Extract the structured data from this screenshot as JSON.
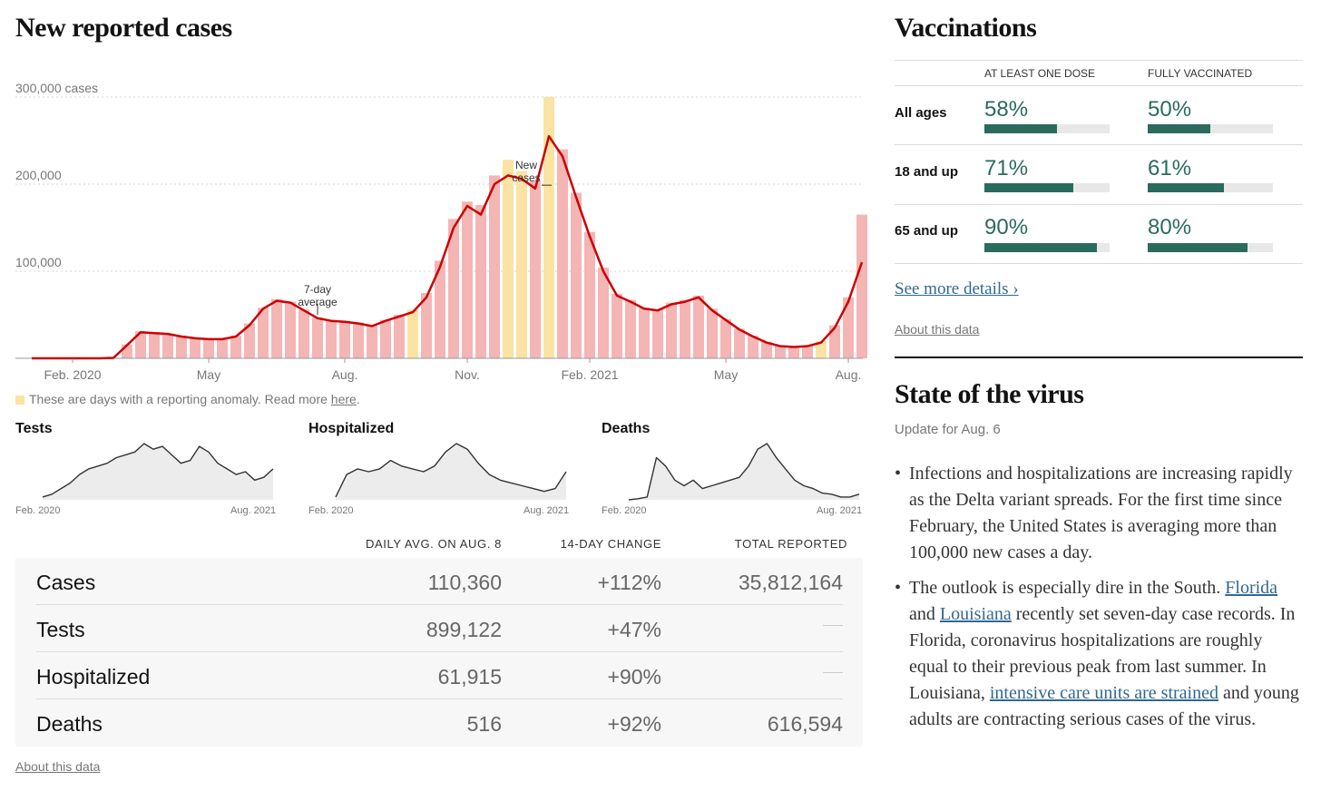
{
  "main": {
    "title": "New reported cases",
    "anomaly_note": "These are days with a reporting anomaly. Read more ",
    "anomaly_link": "here",
    "anomaly_end": ".",
    "about_link": "About this data"
  },
  "chart_data": {
    "type": "bar",
    "title": "New reported cases",
    "y_tick_labels": [
      "300,000 cases",
      "200,000",
      "100,000"
    ],
    "y_ticks": [
      300000,
      200000,
      100000
    ],
    "ylim": [
      0,
      300000
    ],
    "x_tick_labels": [
      "Feb. 2020",
      "May",
      "Aug.",
      "Nov.",
      "Feb. 2021",
      "May",
      "Aug."
    ],
    "x_tick_index": [
      3,
      13,
      23,
      32,
      41,
      51,
      60
    ],
    "grid": true,
    "annotations": [
      {
        "text": [
          "7-day",
          "average"
        ],
        "index": 21
      },
      {
        "text": [
          "New",
          "cases"
        ],
        "index": 37
      }
    ],
    "x_range": [
      "Jan. 2020",
      "Aug. 8, 2021"
    ],
    "series": [
      {
        "name": "7-day average",
        "color": "#cc0000",
        "values": [
          0,
          0,
          0,
          0,
          0,
          0,
          500,
          15000,
          30000,
          29000,
          28000,
          25000,
          23000,
          22000,
          22000,
          25000,
          38000,
          57000,
          66000,
          64000,
          55000,
          46000,
          43000,
          42000,
          40000,
          37000,
          43000,
          48000,
          53000,
          70000,
          105000,
          150000,
          175000,
          165000,
          200000,
          210000,
          206000,
          195000,
          255000,
          232000,
          185000,
          140000,
          100000,
          72000,
          65000,
          57000,
          55000,
          62000,
          65000,
          70000,
          55000,
          44000,
          33000,
          25000,
          18000,
          14000,
          13000,
          14000,
          18000,
          35000,
          65000,
          110360
        ]
      },
      {
        "name": "New cases",
        "color": "#f4b5b5",
        "values": [
          0,
          0,
          0,
          0,
          0,
          0,
          800,
          16000,
          31000,
          30000,
          28000,
          26000,
          24000,
          23000,
          23000,
          26000,
          40000,
          58000,
          68000,
          65000,
          56000,
          47000,
          44000,
          43000,
          41000,
          38000,
          44000,
          50000,
          56000,
          75000,
          112000,
          160000,
          180000,
          176000,
          210000,
          228000,
          215000,
          204000,
          300000,
          240000,
          190000,
          145000,
          104000,
          74000,
          67000,
          58000,
          56000,
          64000,
          67000,
          72000,
          57000,
          45000,
          34000,
          26000,
          19000,
          15000,
          14000,
          15000,
          20000,
          38000,
          70000,
          165000
        ]
      }
    ],
    "anomaly_index": [
      28,
      35,
      36,
      38,
      58
    ]
  },
  "sparklines": [
    {
      "title": "Tests",
      "start": "Feb. 2020",
      "end": "Aug. 2021",
      "values": [
        0.05,
        0.1,
        0.2,
        0.3,
        0.45,
        0.55,
        0.6,
        0.65,
        0.75,
        0.8,
        0.85,
        1.0,
        0.9,
        0.95,
        0.8,
        0.65,
        0.7,
        0.95,
        0.85,
        0.65,
        0.55,
        0.45,
        0.5,
        0.35,
        0.4,
        0.55
      ]
    },
    {
      "title": "Hospitalized",
      "start": "Feb. 2020",
      "end": "Aug. 2021",
      "values": [
        0.05,
        0.45,
        0.55,
        0.5,
        0.55,
        0.7,
        0.6,
        0.55,
        0.5,
        0.6,
        0.85,
        1.0,
        0.9,
        0.65,
        0.45,
        0.35,
        0.3,
        0.25,
        0.2,
        0.15,
        0.2,
        0.5
      ]
    },
    {
      "title": "Deaths",
      "start": "Feb. 2020",
      "end": "Aug. 2021",
      "values": [
        0.0,
        0.02,
        0.05,
        0.75,
        0.6,
        0.35,
        0.25,
        0.35,
        0.2,
        0.25,
        0.3,
        0.35,
        0.4,
        0.6,
        0.9,
        1.0,
        0.75,
        0.55,
        0.35,
        0.25,
        0.2,
        0.12,
        0.1,
        0.05,
        0.05,
        0.1
      ]
    }
  ],
  "table": {
    "columns": [
      "DAILY AVG. ON AUG. 8",
      "14-DAY CHANGE",
      "TOTAL REPORTED"
    ],
    "rows": [
      {
        "name": "Cases",
        "daily": "110,360",
        "change": "+112%",
        "total": "35,812,164"
      },
      {
        "name": "Tests",
        "daily": "899,122",
        "change": "+47%",
        "total": ""
      },
      {
        "name": "Hospitalized",
        "daily": "61,915",
        "change": "+90%",
        "total": ""
      },
      {
        "name": "Deaths",
        "daily": "516",
        "change": "+92%",
        "total": "616,594"
      }
    ]
  },
  "vaccinations": {
    "title": "Vaccinations",
    "columns": [
      "AT LEAST ONE DOSE",
      "FULLY VACCINATED"
    ],
    "rows": [
      {
        "label": "All ages",
        "one_dose": "58%",
        "one_dose_value": 0.58,
        "full": "50%",
        "full_value": 0.5
      },
      {
        "label": "18 and up",
        "one_dose": "71%",
        "one_dose_value": 0.71,
        "full": "61%",
        "full_value": 0.61
      },
      {
        "label": "65 and up",
        "one_dose": "90%",
        "one_dose_value": 0.9,
        "full": "80%",
        "full_value": 0.8
      }
    ],
    "see_more": "See more details ›",
    "about_link": "About this data"
  },
  "state_of_virus": {
    "title": "State of the virus",
    "update": "Update for Aug. 6",
    "bullet1": "Infections and hospitalizations are increasing rapidly as the Delta variant spreads. For the first time since February, the United States is averaging more than 100,000 new cases a day.",
    "bullet2_a": "The outlook is especially dire in the South. ",
    "bullet2_link1": "Florida",
    "bullet2_b": " and ",
    "bullet2_link2": "Louisiana",
    "bullet2_c": " recently set seven-day case records. In Florida, coronavirus hospitalizations are roughly equal to their previous peak from last summer. In Louisiana, ",
    "bullet2_link3": "intensive care units are strained",
    "bullet2_d": " and young adults are contracting serious cases of the virus."
  },
  "colors": {
    "avg_line": "#cc0000",
    "bar": "#f4b5b5",
    "anomaly": "#fbe3a3",
    "vaccine": "#2a6b5d",
    "link": "#326891"
  }
}
